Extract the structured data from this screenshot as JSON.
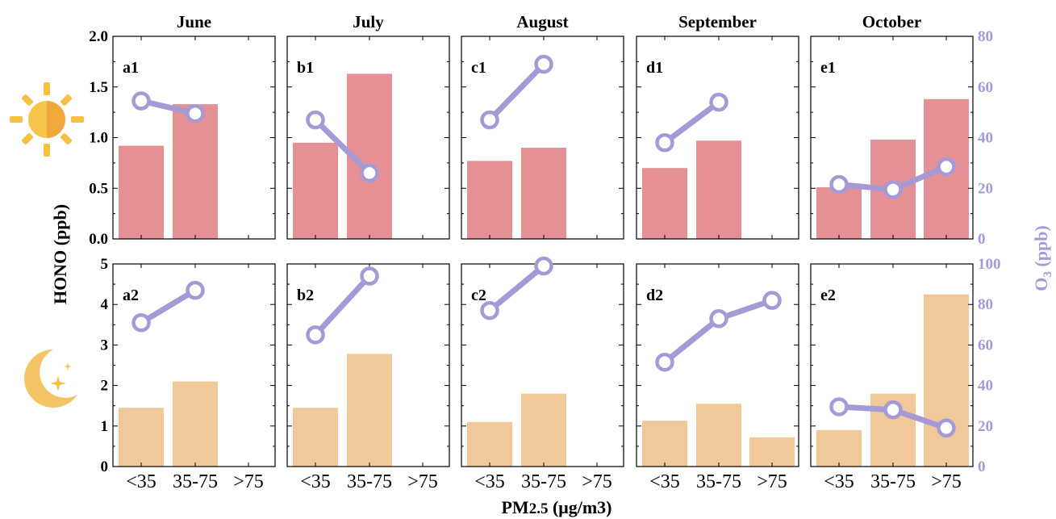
{
  "chart_data": {
    "type": "bar",
    "x_label": "PM2.5 (μg/m3)",
    "y_label_left": "HONO (ppb)",
    "y_label_right": "O3 (ppb)",
    "categories": [
      "<35",
      "35-75",
      ">75"
    ],
    "columns": [
      "June",
      "July",
      "August",
      "September",
      "October"
    ],
    "day": {
      "row_icon": "sun-icon",
      "bar_color": "#e49095",
      "hono_ylim": [
        0,
        2.0
      ],
      "hono_ticks": [
        "0.0",
        "0.5",
        "1.0",
        "1.5",
        "2.0"
      ],
      "o3_ylim": [
        0,
        80
      ],
      "o3_ticks": [
        "0",
        "20",
        "40",
        "60",
        "80"
      ],
      "panels": [
        {
          "label": "a1",
          "month": "June",
          "hono": [
            0.92,
            1.33,
            null
          ],
          "o3": [
            54.5,
            49.5,
            null
          ]
        },
        {
          "label": "b1",
          "month": "July",
          "hono": [
            0.95,
            1.63,
            null
          ],
          "o3": [
            47,
            26,
            null
          ]
        },
        {
          "label": "c1",
          "month": "August",
          "hono": [
            0.77,
            0.9,
            null
          ],
          "o3": [
            47,
            69,
            null
          ]
        },
        {
          "label": "d1",
          "month": "September",
          "hono": [
            0.7,
            0.97,
            null
          ],
          "o3": [
            38,
            54,
            null
          ]
        },
        {
          "label": "e1",
          "month": "October",
          "hono": [
            0.51,
            0.98,
            1.38
          ],
          "o3": [
            21.5,
            19.5,
            28.5
          ]
        }
      ]
    },
    "night": {
      "row_icon": "moon-icon",
      "bar_color": "#f0c899",
      "hono_ylim": [
        0,
        5
      ],
      "hono_ticks": [
        "0",
        "1",
        "2",
        "3",
        "4",
        "5"
      ],
      "o3_ylim": [
        0,
        100
      ],
      "o3_ticks": [
        "0",
        "20",
        "40",
        "60",
        "80",
        "100"
      ],
      "panels": [
        {
          "label": "a2",
          "month": "June",
          "hono": [
            1.45,
            2.1,
            null
          ],
          "o3": [
            71,
            87,
            null
          ]
        },
        {
          "label": "b2",
          "month": "July",
          "hono": [
            1.45,
            2.78,
            null
          ],
          "o3": [
            65,
            94,
            null
          ]
        },
        {
          "label": "c2",
          "month": "August",
          "hono": [
            1.1,
            1.8,
            null
          ],
          "o3": [
            77,
            99,
            null
          ]
        },
        {
          "label": "d2",
          "month": "September",
          "hono": [
            1.13,
            1.55,
            0.72
          ],
          "o3": [
            51.5,
            73,
            82
          ]
        },
        {
          "label": "e2",
          "month": "October",
          "hono": [
            0.9,
            1.8,
            4.25
          ],
          "o3": [
            29.5,
            28,
            19
          ]
        }
      ]
    },
    "o3_line_color": "#a59ad6"
  }
}
